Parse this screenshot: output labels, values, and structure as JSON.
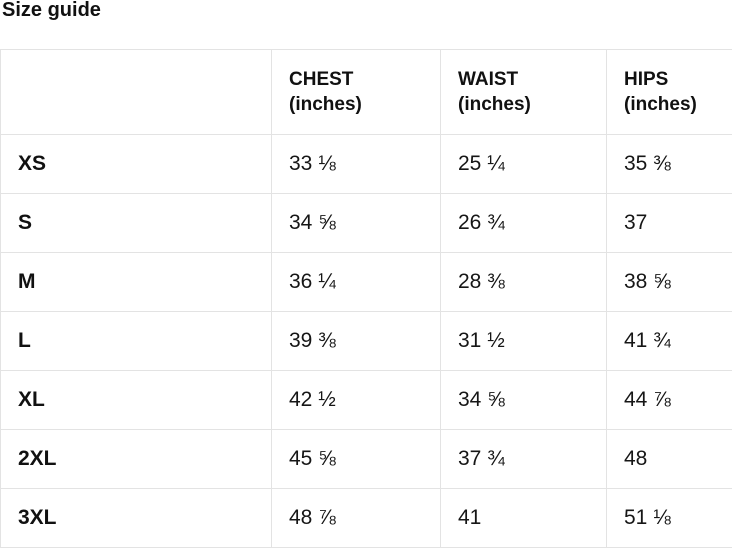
{
  "page": {
    "title": "Size guide"
  },
  "colors": {
    "background": "#ffffff",
    "text": "#111111",
    "table_border": "#e3e3e3"
  },
  "size_table": {
    "columns": [
      {
        "label": "",
        "unit": ""
      },
      {
        "label": "CHEST",
        "unit": "(inches)"
      },
      {
        "label": "WAIST",
        "unit": "(inches)"
      },
      {
        "label": "HIPS",
        "unit": "(inches)"
      }
    ],
    "rows": [
      {
        "size": "XS",
        "chest": "33 ⅛",
        "waist": "25 ¼",
        "hips": "35 ⅜"
      },
      {
        "size": "S",
        "chest": "34 ⅝",
        "waist": "26 ¾",
        "hips": "37"
      },
      {
        "size": "M",
        "chest": "36 ¼",
        "waist": "28 ⅜",
        "hips": "38 ⅝"
      },
      {
        "size": "L",
        "chest": "39 ⅜",
        "waist": "31 ½",
        "hips": "41 ¾"
      },
      {
        "size": "XL",
        "chest": "42 ½",
        "waist": "34 ⅝",
        "hips": "44 ⅞"
      },
      {
        "size": "2XL",
        "chest": "45 ⅝",
        "waist": "37 ¾",
        "hips": "48"
      },
      {
        "size": "3XL",
        "chest": "48 ⅞",
        "waist": "41",
        "hips": "51 ⅛"
      }
    ]
  }
}
